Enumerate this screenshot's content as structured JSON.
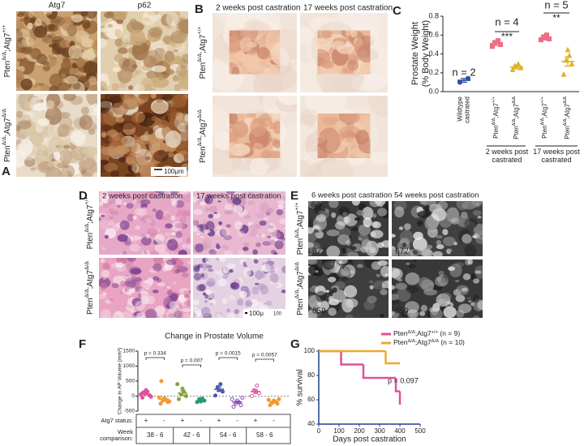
{
  "panels": {
    "A": {
      "label": "A",
      "columns": [
        "Atg7",
        "p62"
      ],
      "rows": [
        "PtenΔ/Δ;Atg7+/+",
        "PtenΔ/Δ;Atg7Δ/Δ"
      ],
      "scale_bar": "100μm"
    },
    "B": {
      "label": "B",
      "columns": [
        "2 weeks post castration",
        "17 weeks post castration"
      ],
      "rows": [
        "PtenΔ/Δ;Atg7+/+",
        "PtenΔ/Δ;Atg7Δ/Δ"
      ]
    },
    "D": {
      "label": "D",
      "columns": [
        "2 weeks post castration",
        "17 weeks post castration"
      ],
      "rows": [
        "PtenΔ/Δ;Atg7+/+",
        "PtenΔ/Δ;Atg7Δ/Δ"
      ],
      "scale_bar": "100μ",
      "scale_number": "100"
    },
    "E": {
      "label": "E",
      "columns": [
        "6 weeks post castration",
        "54 weeks post castration"
      ],
      "rows": [
        "PtenΔ/Δ;Atg7+/+",
        "PtenΔ/Δ;Atg7Δ/Δ"
      ],
      "image_ids": [
        [
          "672",
          "672"
        ],
        [
          "659",
          "659"
        ]
      ]
    }
  },
  "chart_data": [
    {
      "label": "C",
      "type": "dot",
      "ylabel": [
        "Prostate Weight",
        "(% Body Weight)"
      ],
      "ylim": [
        0,
        0.8
      ],
      "yticks": [
        {
          "value": 0,
          "label": "0.0"
        },
        {
          "value": 0.2,
          "label": "0.2"
        },
        {
          "value": 0.4,
          "label": "0.4"
        },
        {
          "value": 0.6,
          "label": "0.6"
        },
        {
          "value": 0.8,
          "label": "0.8"
        }
      ],
      "categories": [
        "Wildtype castrated",
        "PtenΔ/Δ;Atg7+/+",
        "PtenΔ/Δ;Atg7Δ/Δ",
        "PtenΔ/Δ;Atg7+/+",
        "PtenΔ/Δ;Atg7Δ/Δ"
      ],
      "group_labels": [
        "2 weeks post castrated",
        "17 weeks post castrated"
      ],
      "annotations": [
        "n = 2",
        "n = 4",
        "***",
        "n = 5",
        "**"
      ],
      "groups": [
        {
          "color": "#2f4fa8",
          "marker": "circle",
          "values": [
            0.1,
            0.14
          ],
          "mean": 0.12,
          "sem": 0.02
        },
        {
          "color": "#ec6f86",
          "marker": "square",
          "values": [
            0.48,
            0.5,
            0.52,
            0.54
          ],
          "mean": 0.51,
          "sem": 0.02
        },
        {
          "color": "#e0b21f",
          "marker": "triangle",
          "values": [
            0.23,
            0.25,
            0.27,
            0.29
          ],
          "mean": 0.26,
          "sem": 0.02
        },
        {
          "color": "#ec6f86",
          "marker": "square",
          "values": [
            0.55,
            0.56,
            0.58,
            0.6,
            0.57
          ],
          "mean": 0.57,
          "sem": 0.01
        },
        {
          "color": "#e0b21f",
          "marker": "triangle",
          "values": [
            0.18,
            0.29,
            0.33,
            0.38,
            0.44
          ],
          "mean": 0.32,
          "sem": 0.05
        }
      ]
    },
    {
      "label": "F",
      "type": "dot",
      "title": "Change in Prostate Volume",
      "ylabel": "Change in AP Volume (mm³)",
      "ylim": [
        -500,
        1500
      ],
      "yticks": [
        -500,
        0,
        500,
        1000,
        1500
      ],
      "p_values": [
        "p = 0.334",
        "p = 0.007",
        "p = 0.0015",
        "p = 0.0057"
      ],
      "table": {
        "row_labels": [
          "Atg7 status:",
          "Week comparison:"
        ],
        "status": [
          "+",
          "-",
          "+",
          "-",
          "+",
          "-",
          "+",
          "-"
        ],
        "weeks": [
          "38 - 6",
          "42 - 6",
          "54 - 6",
          "58 - 6"
        ]
      },
      "groups": [
        {
          "color": "#e0509a",
          "filled": true,
          "values": [
            -50,
            20,
            80,
            150,
            200,
            60,
            -20,
            120
          ],
          "mean": 70,
          "sem": 30
        },
        {
          "color": "#f09a30",
          "filled": true,
          "values": [
            -250,
            -200,
            -150,
            -120,
            -80,
            -50,
            -180,
            500
          ],
          "mean": -100,
          "sem": 60
        },
        {
          "color": "#8aa33a",
          "filled": true,
          "values": [
            -100,
            0,
            50,
            150,
            250,
            400
          ],
          "mean": 100,
          "sem": 70
        },
        {
          "color": "#2a9a70",
          "filled": true,
          "values": [
            -200,
            -150,
            -100,
            -80,
            -180
          ],
          "mean": -150,
          "sem": 25
        },
        {
          "color": "#4a5ab0",
          "filled": true,
          "values": [
            20,
            150,
            300,
            400,
            200
          ],
          "mean": 230,
          "sem": 70
        },
        {
          "color": "#8a4ab8",
          "filled": false,
          "values": [
            -350,
            -300,
            -250,
            -200,
            -150,
            -100,
            -50
          ],
          "mean": -200,
          "sem": 40
        },
        {
          "color": "#e0509a",
          "filled": false,
          "values": [
            0,
            100,
            200,
            350,
            150
          ],
          "mean": 150,
          "sem": 60
        },
        {
          "color": "#f09a30",
          "filled": true,
          "values": [
            -300,
            -250,
            -220,
            -180,
            -150,
            -120,
            -100
          ],
          "mean": -190,
          "sem": 30
        }
      ]
    },
    {
      "label": "G",
      "type": "survival",
      "xlabel": "Days post castration",
      "ylabel": "% survival",
      "xlim": [
        0,
        500
      ],
      "xticks": [
        0,
        100,
        200,
        300,
        400,
        500
      ],
      "ylim": [
        40,
        100
      ],
      "yticks": [
        40,
        60,
        80,
        100
      ],
      "annotation": "p = 0.097",
      "series": [
        {
          "name": "PtenΔ/Δ;Atg7+/+ (n = 9)",
          "color": "#e0509a",
          "x": [
            0,
            110,
            220,
            380,
            400
          ],
          "values": [
            100,
            89,
            78,
            67,
            56
          ]
        },
        {
          "name": "PtenΔ/Δ;Atg7Δ/Δ (n = 10)",
          "color": "#f0a830",
          "x": [
            0,
            330,
            400
          ],
          "values": [
            100,
            90,
            90
          ]
        }
      ]
    }
  ]
}
